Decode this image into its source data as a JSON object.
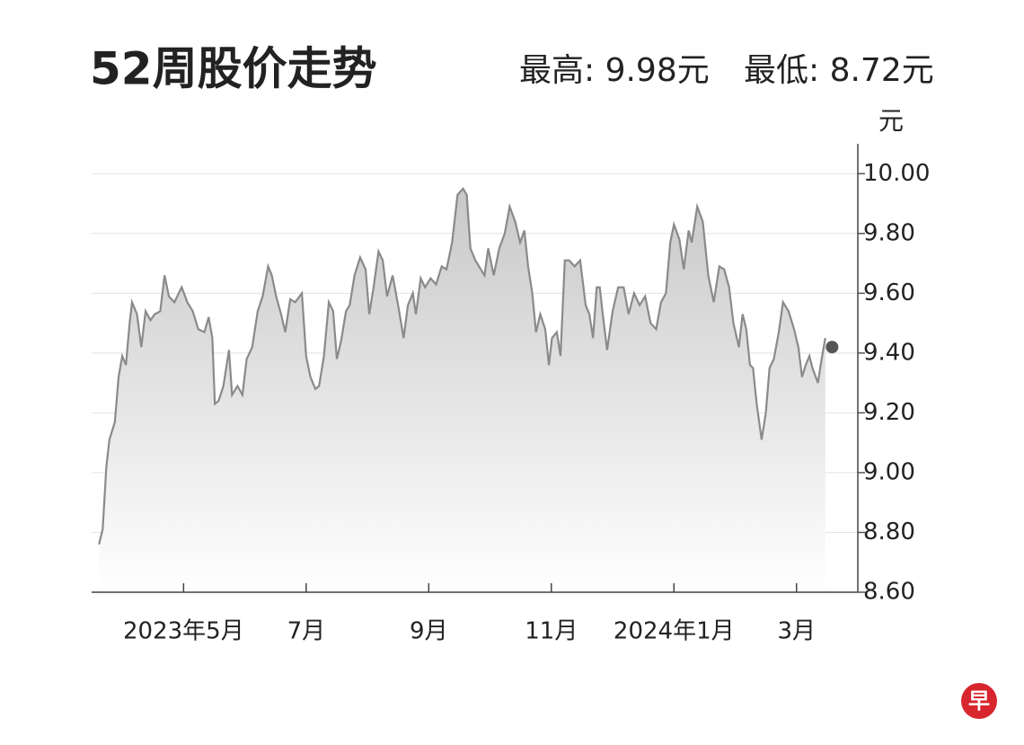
{
  "chart_data": {
    "type": "line",
    "title": "52周股价走势",
    "high_label": "最高: 9.98元",
    "low_label": "最低: 8.72元",
    "y_unit": "元",
    "logo": "早",
    "x": [
      3.62,
      3.68,
      3.74,
      3.79,
      3.88,
      3.94,
      4.0,
      4.06,
      4.12,
      4.16,
      4.24,
      4.31,
      4.38,
      4.46,
      4.53,
      4.62,
      4.69,
      4.76,
      4.85,
      4.97,
      5.06,
      5.15,
      5.24,
      5.34,
      5.41,
      5.47,
      5.51,
      5.57,
      5.65,
      5.74,
      5.79,
      5.88,
      5.96,
      6.03,
      6.12,
      6.21,
      6.29,
      6.38,
      6.44,
      6.51,
      6.59,
      6.66,
      6.74,
      6.82,
      6.93,
      7.0,
      7.07,
      7.15,
      7.21,
      7.29,
      7.37,
      7.44,
      7.5,
      7.57,
      7.65,
      7.71,
      7.79,
      7.88,
      7.97,
      8.03,
      8.1,
      8.18,
      8.25,
      8.32,
      8.41,
      8.5,
      8.59,
      8.66,
      8.74,
      8.79,
      8.87,
      8.94,
      9.03,
      9.12,
      9.21,
      9.29,
      9.38,
      9.47,
      9.56,
      9.62,
      9.68,
      9.76,
      9.85,
      9.91,
      9.97,
      10.06,
      10.15,
      10.24,
      10.32,
      10.41,
      10.49,
      10.56,
      10.62,
      10.69,
      10.75,
      10.82,
      10.9,
      10.96,
      11.01,
      11.09,
      11.15,
      11.22,
      11.29,
      11.38,
      11.47,
      11.56,
      11.62,
      11.68,
      11.74,
      11.79,
      11.85,
      11.91,
      12.0,
      12.09,
      12.18,
      12.26,
      12.35,
      12.44,
      12.53,
      12.62,
      12.71,
      12.79,
      12.87,
      12.94,
      13.0,
      13.09,
      13.16,
      13.24,
      13.29,
      13.38,
      13.47,
      13.56,
      13.65,
      13.74,
      13.82,
      13.9,
      13.97,
      14.06,
      14.12,
      14.18,
      14.24,
      14.29,
      14.35,
      14.43,
      14.5,
      14.56,
      14.63,
      14.71,
      14.78,
      14.87,
      14.96,
      15.03,
      15.09,
      15.15,
      15.21,
      15.26,
      15.35,
      15.41,
      15.47
    ],
    "series": [
      {
        "color": "#8a8a8a",
        "values": [
          8.76,
          8.81,
          9.02,
          9.11,
          9.17,
          9.32,
          9.39,
          9.36,
          9.5,
          9.57,
          9.53,
          9.42,
          9.54,
          9.51,
          9.53,
          9.54,
          9.66,
          9.59,
          9.57,
          9.62,
          9.57,
          9.54,
          9.48,
          9.47,
          9.52,
          9.45,
          9.23,
          9.24,
          9.29,
          9.41,
          9.26,
          9.29,
          9.26,
          9.38,
          9.42,
          9.54,
          9.59,
          9.69,
          9.66,
          9.59,
          9.53,
          9.47,
          9.58,
          9.57,
          9.6,
          9.39,
          9.32,
          9.28,
          9.29,
          9.39,
          9.57,
          9.54,
          9.38,
          9.44,
          9.54,
          9.56,
          9.66,
          9.72,
          9.68,
          9.53,
          9.62,
          9.74,
          9.71,
          9.59,
          9.66,
          9.56,
          9.45,
          9.56,
          9.6,
          9.53,
          9.65,
          9.62,
          9.65,
          9.63,
          9.69,
          9.68,
          9.77,
          9.93,
          9.95,
          9.93,
          9.75,
          9.71,
          9.68,
          9.66,
          9.75,
          9.66,
          9.75,
          9.8,
          9.89,
          9.84,
          9.77,
          9.81,
          9.69,
          9.6,
          9.47,
          9.53,
          9.48,
          9.36,
          9.45,
          9.47,
          9.39,
          9.71,
          9.71,
          9.69,
          9.71,
          9.56,
          9.53,
          9.45,
          9.62,
          9.62,
          9.51,
          9.41,
          9.54,
          9.62,
          9.62,
          9.53,
          9.6,
          9.56,
          9.59,
          9.5,
          9.48,
          9.57,
          9.6,
          9.77,
          9.83,
          9.78,
          9.68,
          9.81,
          9.77,
          9.89,
          9.84,
          9.66,
          9.57,
          9.69,
          9.68,
          9.62,
          9.5,
          9.42,
          9.53,
          9.48,
          9.36,
          9.35,
          9.23,
          9.11,
          9.2,
          9.35,
          9.38,
          9.47,
          9.57,
          9.54,
          9.48,
          9.42,
          9.32,
          9.36,
          9.39,
          9.35,
          9.3,
          9.38,
          9.45
        ]
      }
    ],
    "marker": {
      "x": 15.58,
      "value": 9.42,
      "color": "#555555"
    },
    "xlim": [
      3.5,
      16
    ],
    "xticks": [
      {
        "value": 5,
        "label": "2023年5月"
      },
      {
        "value": 7,
        "label": "7月"
      },
      {
        "value": 9,
        "label": "9月"
      },
      {
        "value": 11,
        "label": "11月"
      },
      {
        "value": 13,
        "label": "2024年1月"
      },
      {
        "value": 15,
        "label": "3月"
      }
    ],
    "ylim": [
      8.6,
      10.1
    ],
    "yticks": [
      {
        "value": 8.6,
        "label": "8.60"
      },
      {
        "value": 8.8,
        "label": "8.80"
      },
      {
        "value": 9,
        "label": "9.00"
      },
      {
        "value": 9.2,
        "label": "9.20"
      },
      {
        "value": 9.4,
        "label": "9.40"
      },
      {
        "value": 9.6,
        "label": "9.60"
      },
      {
        "value": 9.8,
        "label": "9.80"
      },
      {
        "value": 10,
        "label": "10.00"
      }
    ],
    "grid": true,
    "y_axis_side": "right"
  }
}
